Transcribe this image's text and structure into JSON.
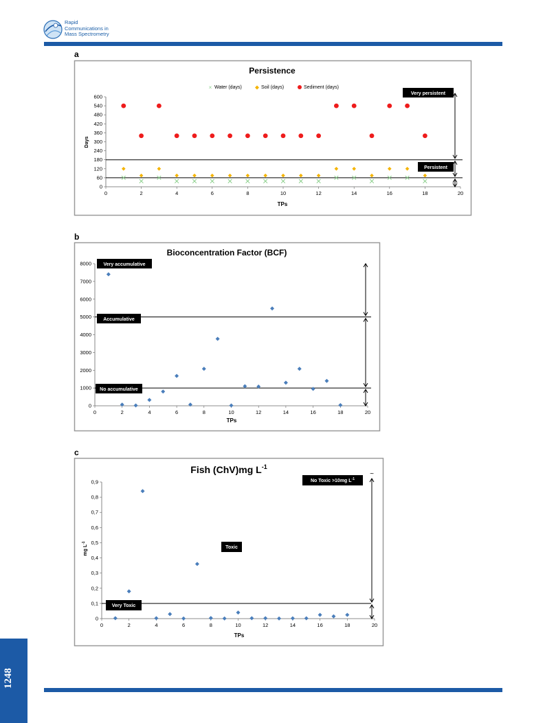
{
  "header": {
    "journal_lines": [
      "Rapid",
      "Communications in",
      "Mass Spectrometry"
    ]
  },
  "page_number": "1248",
  "colors": {
    "brand": "#1c5aa6",
    "water": "#8fd18f",
    "soil": "#f5b400",
    "sediment": "#ee1c1c",
    "bcf": "#4a7ebb",
    "fish": "#4a7ebb"
  },
  "panels": {
    "a": "a",
    "b": "b",
    "c": "c"
  },
  "chart_data": [
    {
      "type": "scatter",
      "title": "Persistence",
      "xlabel": "TPs",
      "ylabel": "Days",
      "xlim": [
        0,
        20
      ],
      "ylim": [
        0,
        600
      ],
      "xticks": [
        "0",
        "2",
        "4",
        "6",
        "8",
        "10",
        "12",
        "14",
        "16",
        "18",
        "20"
      ],
      "yticks": [
        "0",
        "60",
        "120",
        "180",
        "240",
        "300",
        "360",
        "420",
        "480",
        "540",
        "600"
      ],
      "legend_position": "top",
      "x": [
        1,
        2,
        3,
        4,
        5,
        6,
        7,
        8,
        9,
        10,
        11,
        12,
        13,
        14,
        15,
        16,
        17,
        18
      ],
      "series": [
        {
          "name": "Water (days)",
          "marker": "x",
          "values": [
            60,
            37.5,
            60,
            37.5,
            37.5,
            37.5,
            37.5,
            37.5,
            37.5,
            37.5,
            37.5,
            37.5,
            60,
            60,
            37.5,
            60,
            60,
            37.5
          ]
        },
        {
          "name": "Soil (days)",
          "marker": "diamond",
          "values": [
            120,
            75,
            120,
            75,
            75,
            75,
            75,
            75,
            75,
            75,
            75,
            75,
            120,
            120,
            75,
            120,
            120,
            75
          ]
        },
        {
          "name": "Sediment (days)",
          "marker": "circle",
          "values": [
            540,
            340,
            540,
            340,
            340,
            340,
            340,
            340,
            340,
            340,
            340,
            340,
            540,
            540,
            340,
            540,
            540,
            340
          ]
        }
      ],
      "thresholds": [
        180,
        60
      ],
      "annotations": [
        "Very persistent",
        "Persistent"
      ]
    },
    {
      "type": "scatter",
      "title": "Bioconcentration Factor (BCF)",
      "xlabel": "TPs",
      "ylabel": "",
      "xlim": [
        0,
        20
      ],
      "ylim": [
        0,
        8000
      ],
      "xticks": [
        "0",
        "2",
        "4",
        "6",
        "8",
        "10",
        "12",
        "14",
        "16",
        "18",
        "20"
      ],
      "yticks": [
        "0",
        "1000",
        "2000",
        "3000",
        "4000",
        "5000",
        "6000",
        "7000",
        "8000"
      ],
      "x": [
        1,
        2,
        3,
        4,
        5,
        6,
        7,
        8,
        9,
        10,
        11,
        12,
        13,
        14,
        15,
        16,
        17,
        18
      ],
      "series": [
        {
          "name": "",
          "marker": "diamond",
          "values": [
            7400,
            70,
            20,
            330,
            800,
            1680,
            70,
            2080,
            3770,
            20,
            1100,
            1080,
            5480,
            1300,
            2080,
            950,
            1400,
            40
          ]
        }
      ],
      "thresholds": [
        5000,
        1000
      ],
      "annotations": [
        "Very accumulative",
        "Accumulative",
        "No accumulative"
      ]
    },
    {
      "type": "scatter",
      "title": "Fish (ChV)mg L",
      "title_superscript": "-1",
      "xlabel": "TPs",
      "ylabel": "mg L",
      "ylabel_superscript": "-1",
      "xlim": [
        0,
        20
      ],
      "ylim": [
        0,
        0.9
      ],
      "xticks": [
        "0",
        "2",
        "4",
        "6",
        "8",
        "10",
        "12",
        "14",
        "16",
        "18",
        "20"
      ],
      "yticks": [
        "0",
        "0,1",
        "0,2",
        "0,3",
        "0,4",
        "0,5",
        "0,6",
        "0,7",
        "0,8",
        "0,9"
      ],
      "x": [
        1,
        2,
        3,
        4,
        5,
        6,
        7,
        8,
        9,
        10,
        11,
        12,
        13,
        14,
        15,
        16,
        17,
        18
      ],
      "series": [
        {
          "name": "",
          "marker": "diamond",
          "values": [
            0.003,
            0.18,
            0.84,
            0.003,
            0.03,
            0.001,
            0.36,
            0.004,
            0.001,
            0.04,
            0.003,
            0.003,
            0.001,
            0.002,
            0.002,
            0.025,
            0.015,
            0.025
          ]
        }
      ],
      "thresholds": [
        0.1
      ],
      "annotations": [
        "No Toxic >10mg L",
        "Toxic",
        "Very Toxic"
      ],
      "annotation_superscript": "-1"
    }
  ]
}
